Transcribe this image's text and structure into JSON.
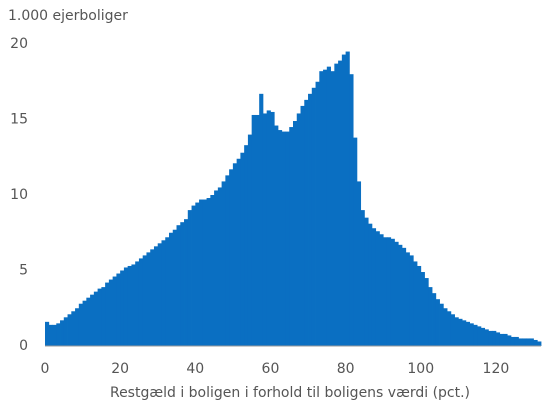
{
  "chart_data": {
    "type": "histogram",
    "y_label": "1.000 ejerboliger",
    "x_label": "Restgæld  i boligen i forhold til boligens værdi (pct.)",
    "color": "#0a6fc2",
    "bins": [
      0,
      1,
      2,
      3,
      4,
      5,
      6,
      7,
      8,
      9,
      10,
      11,
      12,
      13,
      14,
      15,
      16,
      17,
      18,
      19,
      20,
      21,
      22,
      23,
      24,
      25,
      26,
      27,
      28,
      29,
      30,
      31,
      32,
      33,
      34,
      35,
      36,
      37,
      38,
      39,
      40,
      41,
      42,
      43,
      44,
      45,
      46,
      47,
      48,
      49,
      50,
      51,
      52,
      53,
      54,
      55,
      56,
      57,
      58,
      59,
      60,
      61,
      62,
      63,
      64,
      65,
      66,
      67,
      68,
      69,
      70,
      71,
      72,
      73,
      74,
      75,
      76,
      77,
      78,
      79,
      80,
      81,
      82,
      83,
      84,
      85,
      86,
      87,
      88,
      89,
      90,
      91,
      92,
      93,
      94,
      95,
      96,
      97,
      98,
      99,
      100,
      101,
      102,
      103,
      104,
      105,
      106,
      107,
      108,
      109,
      110,
      111,
      112,
      113,
      114,
      115,
      116,
      117,
      118,
      119,
      120,
      121,
      122,
      123,
      124,
      125,
      126,
      127,
      128,
      129,
      130,
      131,
      132
    ],
    "counts": [
      1.6,
      1.4,
      1.4,
      1.5,
      1.7,
      1.9,
      2.1,
      2.3,
      2.5,
      2.8,
      3.0,
      3.2,
      3.4,
      3.6,
      3.8,
      3.9,
      4.2,
      4.4,
      4.6,
      4.8,
      5.0,
      5.2,
      5.3,
      5.4,
      5.6,
      5.8,
      6.0,
      6.2,
      6.4,
      6.6,
      6.8,
      7.0,
      7.2,
      7.5,
      7.7,
      8.0,
      8.2,
      8.4,
      9.0,
      9.3,
      9.5,
      9.7,
      9.7,
      9.8,
      10.0,
      10.3,
      10.5,
      10.9,
      11.3,
      11.7,
      12.1,
      12.4,
      12.8,
      13.3,
      14.0,
      15.3,
      15.3,
      16.7,
      15.4,
      15.6,
      15.5,
      14.6,
      14.3,
      14.2,
      14.2,
      14.5,
      14.9,
      15.4,
      15.9,
      16.3,
      16.7,
      17.1,
      17.5,
      18.2,
      18.3,
      18.5,
      18.2,
      18.7,
      18.9,
      19.3,
      19.5,
      18.0,
      13.8,
      10.9,
      9.0,
      8.5,
      8.1,
      7.8,
      7.6,
      7.4,
      7.2,
      7.2,
      7.1,
      6.9,
      6.7,
      6.5,
      6.2,
      6.0,
      5.6,
      5.3,
      4.9,
      4.5,
      3.9,
      3.5,
      3.1,
      2.8,
      2.5,
      2.3,
      2.1,
      1.9,
      1.8,
      1.7,
      1.6,
      1.5,
      1.4,
      1.3,
      1.2,
      1.1,
      1.0,
      1.0,
      0.9,
      0.8,
      0.8,
      0.7,
      0.6,
      0.6,
      0.5,
      0.5,
      0.5,
      0.5,
      0.4,
      0.3
    ],
    "xlim": [
      0,
      132
    ],
    "xticks": [
      0,
      20,
      40,
      60,
      80,
      100,
      120
    ],
    "ylim": [
      0,
      20
    ],
    "yticks": [
      0,
      5,
      10,
      15,
      20
    ]
  }
}
